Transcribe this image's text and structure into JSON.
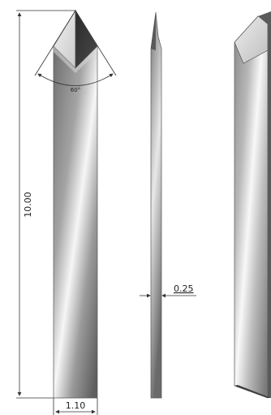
{
  "dimensions": {
    "length": "10.00",
    "width": "1.10",
    "thickness": "0.25",
    "tip_angle": "60°"
  },
  "colors": {
    "line": "#333333",
    "text": "#222222",
    "metal_dark": "#6a6a6a",
    "metal_mid": "#9a9a9a",
    "metal_light": "#f4f4f4"
  }
}
